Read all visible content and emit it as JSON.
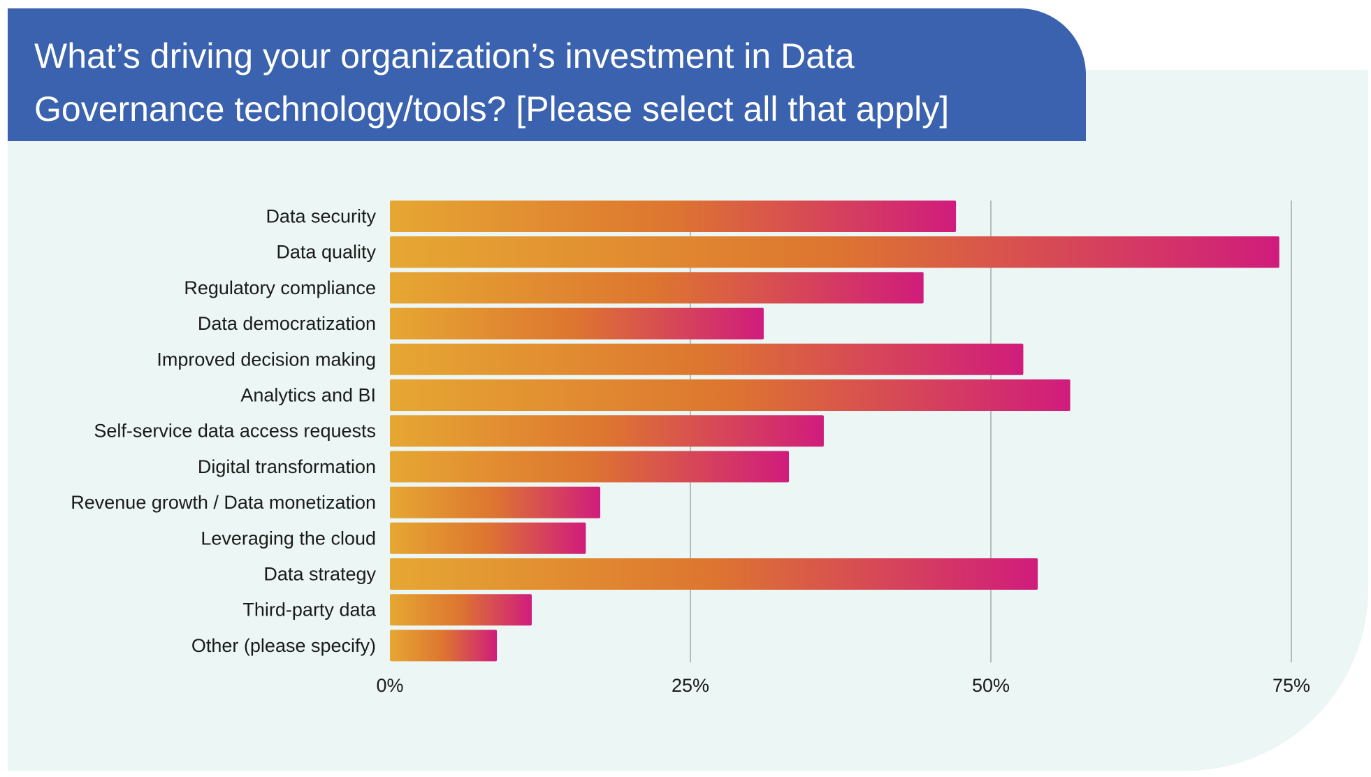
{
  "chart_data": {
    "type": "bar",
    "orientation": "horizontal",
    "title": "What’s driving your organization’s investment in Data Governance technology/tools? [Please select all that apply]",
    "xlabel": "",
    "ylabel": "",
    "xlim": [
      0,
      75
    ],
    "x_ticks": [
      0,
      25,
      50,
      75
    ],
    "x_tick_labels": [
      "0%",
      "25%",
      "50%",
      "75%"
    ],
    "grid": true,
    "categories": [
      "Data security",
      "Data quality",
      "Regulatory compliance",
      "Data democratization",
      "Improved decision making",
      "Analytics and BI",
      "Self-service data access requests",
      "Digital transformation",
      "Revenue growth / Data monetization",
      "Leveraging the cloud",
      "Data strategy",
      "Third-party data",
      "Other (please specify)"
    ],
    "values": [
      47.1,
      74.0,
      44.4,
      31.1,
      52.7,
      56.6,
      36.1,
      33.2,
      17.5,
      16.3,
      53.9,
      11.8,
      8.9
    ],
    "colors": {
      "gradient_start": "#e6a732",
      "gradient_mid": "#dd7530",
      "gradient_end": "#d01c7c",
      "grid": "#b5bcbb"
    }
  }
}
